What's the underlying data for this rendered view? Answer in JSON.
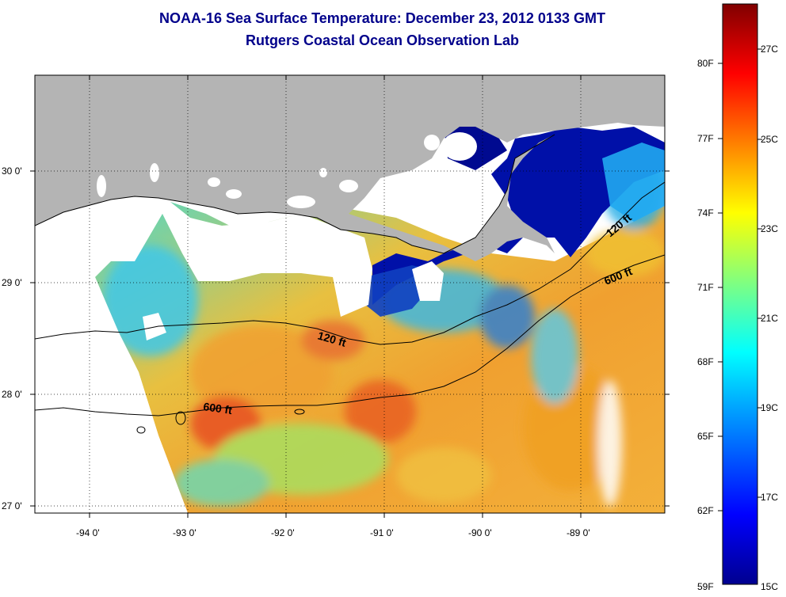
{
  "title": "NOAA-16 Sea Surface Temperature:  December 23, 2012 0133 GMT",
  "subtitle": "Rutgers Coastal Ocean Observation Lab",
  "map": {
    "lon_labels": [
      "-94 0'",
      "-93 0'",
      "-92 0'",
      "-91 0'",
      "-90 0'",
      "-89 0'"
    ],
    "lat_labels": [
      "30 0'",
      "29 0'",
      "28 0'",
      "27 0'"
    ],
    "isobath_labels": [
      "120 ft",
      "600 ft",
      "120 ft",
      "600 ft"
    ],
    "colors": {
      "land": "#b4b4b4",
      "cloud_or_nodata": "#ffffff",
      "coast": "#000000"
    }
  },
  "colorbar": {
    "fahrenheit_labels": [
      "80F",
      "77F",
      "74F",
      "71F",
      "68F",
      "65F",
      "62F",
      "59F"
    ],
    "celsius_labels": [
      "27C",
      "25C",
      "23C",
      "21C",
      "19C",
      "17C",
      "15C"
    ],
    "colors": [
      "#00008f",
      "#0000ff",
      "#00a0ff",
      "#00ffff",
      "#80ff80",
      "#ffff00",
      "#ff8000",
      "#ff0000",
      "#800000"
    ]
  }
}
